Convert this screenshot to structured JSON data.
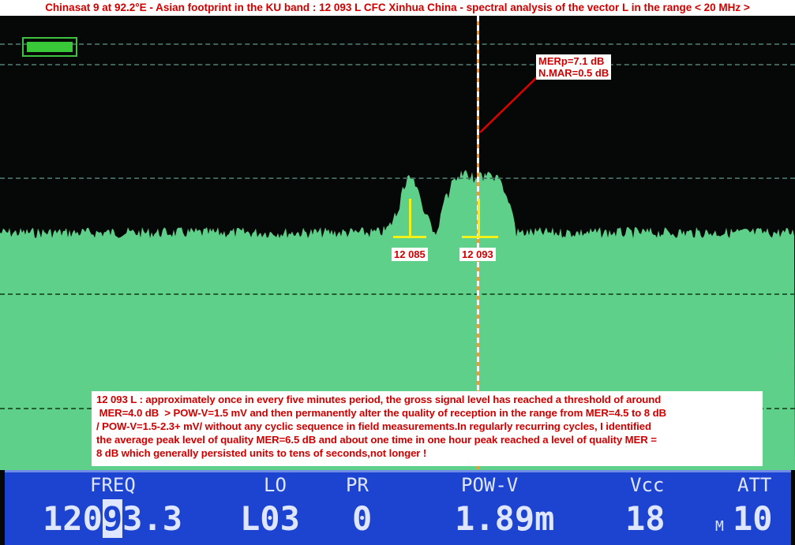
{
  "title": "Chinasat 9 at 92.2°E - Asian footprint in the KU band : 12 093 L CFC Xinhua China - spectral analysis of the vector L in the range  < 20 MHz >",
  "annotations": {
    "mer_label_line1": "MERp=7.1 dB",
    "mer_label_line2": "N.MAR=0.5 dB",
    "marker1": "12 085",
    "marker2": "12 093"
  },
  "note": [
    "12 093 L : approximately once in every five minutes period, the gross signal level has reached a threshold of around",
    " MER=4.0 dB  > POW-V=1.5 mV and then permanently alter the quality of reception in the range from MER=4.5 to 8 dB",
    "/ POW-V=1.5-2.3+ mV/ without any cyclic sequence in field measurements.In regularly recurring cycles, I identified",
    "the average peak level of quality MER=6.5 dB and about one time in one hour peak reached a level of quality MER =",
    "8 dB which generally persisted units to tens of seconds,not longer !"
  ],
  "status": {
    "freq_label": "FREQ",
    "freq_pre": "120",
    "freq_cursor": "9",
    "freq_post": "3.3",
    "lo_label": "LO",
    "lo_value": "L03",
    "pr_label": "PR",
    "pr_value": "0",
    "pow_label": "POW-V",
    "pow_value": "1.89m",
    "vcc_label": "Vcc",
    "vcc_value": "18",
    "att_label": "ATT",
    "att_prefix": "M",
    "att_value": "10"
  },
  "colors": {
    "spectrum": "#5fd08a",
    "status_bg": "#1d44d0",
    "annotation": "#d00000",
    "marker": "#f2f21a"
  }
}
